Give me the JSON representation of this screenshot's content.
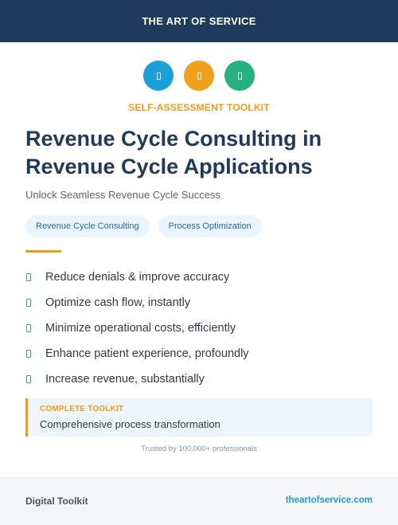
{
  "header": {
    "brand": "THE ART OF SERVICE"
  },
  "icons": [
    {
      "name": "document-icon",
      "color": "#1ba0dc"
    },
    {
      "name": "document-icon",
      "color": "#efa11b"
    },
    {
      "name": "document-icon",
      "color": "#25b07f"
    }
  ],
  "eyebrow": "SELF-ASSESSMENT TOOLKIT",
  "title": "Revenue Cycle Consulting in Revenue Cycle Applications",
  "subtitle": "Unlock Seamless Revenue Cycle Success",
  "tags": [
    "Revenue Cycle Consulting",
    "Process Optimization"
  ],
  "features": [
    "Reduce denials & improve accuracy",
    "Optimize cash flow, instantly",
    "Minimize operational costs, efficiently",
    "Enhance patient experience, profoundly",
    "Increase revenue, substantially"
  ],
  "callout": {
    "label": "COMPLETE TOOLKIT",
    "text": "Comprehensive process transformation"
  },
  "trusted": "Trusted by 100,000+ professionals",
  "footer": {
    "left": "Digital Toolkit",
    "right": "theartofservice.com"
  },
  "colors": {
    "navy": "#1e3a5c",
    "orange": "#ef9c1a",
    "blue": "#1ba0dc",
    "green": "#25b07f"
  }
}
